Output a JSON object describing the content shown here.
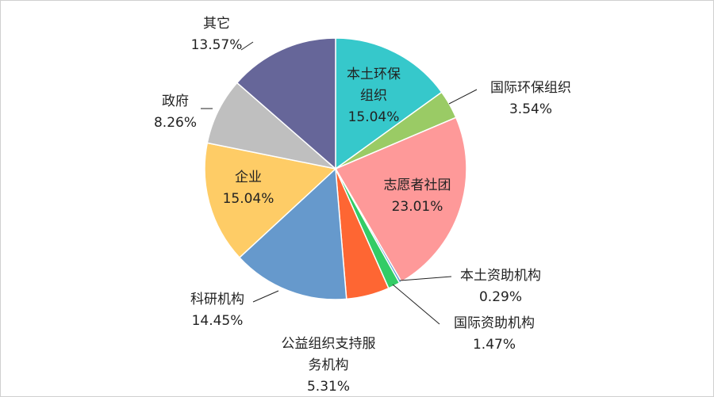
{
  "chart_data": {
    "type": "pie",
    "categories": [
      "本土环保组织",
      "国际环保组织",
      "志愿者社团",
      "本土资助机构",
      "国际资助机构",
      "公益组织支持服务机构",
      "科研机构",
      "企业",
      "政府",
      "其它"
    ],
    "values": [
      15.04,
      3.54,
      23.01,
      0.29,
      1.47,
      5.31,
      14.45,
      15.04,
      8.26,
      13.57
    ],
    "value_labels": [
      "15.04%",
      "3.54%",
      "23.01%",
      "0.29%",
      "1.47%",
      "5.31%",
      "14.45%",
      "15.04%",
      "8.26%",
      "13.57%"
    ],
    "colors": [
      "#36c8cb",
      "#9acb65",
      "#fe9999",
      "#5b9bd5",
      "#33cc66",
      "#fe6633",
      "#6699cc",
      "#fecc66",
      "#bfbfbf",
      "#666699"
    ]
  }
}
